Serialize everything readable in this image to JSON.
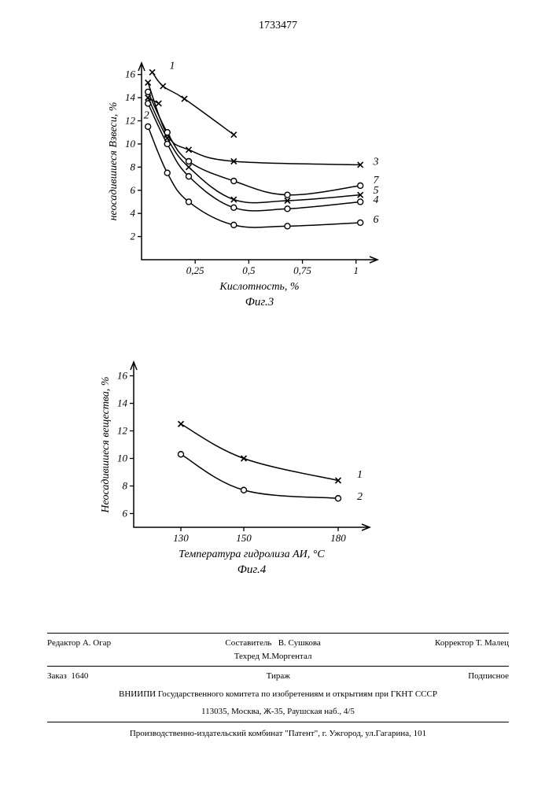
{
  "page_number": "1733477",
  "chart3": {
    "type": "line",
    "title": "Фиг.3",
    "title_fontsize": 15,
    "xlabel": "Кислотность, %",
    "ylabel": "неосадившиеся Взвеси, %",
    "label_fontsize": 14,
    "xlim": [
      0,
      1.1
    ],
    "ylim": [
      0,
      17
    ],
    "xticks": [
      0.25,
      0.5,
      0.75,
      1.0
    ],
    "yticks": [
      2,
      4,
      6,
      8,
      10,
      12,
      14,
      16
    ],
    "axis_color": "#000000",
    "line_color": "#000000",
    "line_width": 1.5,
    "series": [
      {
        "label": "1",
        "marker": "x",
        "x": [
          0.05,
          0.1,
          0.2,
          0.43
        ],
        "y": [
          16.2,
          15.0,
          13.9,
          10.8
        ]
      },
      {
        "label": "2",
        "marker": "x",
        "x": [
          0.03,
          0.08
        ],
        "y": [
          14.0,
          13.5
        ]
      },
      {
        "label": "3",
        "marker": "x",
        "x": [
          0.03,
          0.12,
          0.22,
          0.43,
          1.02
        ],
        "y": [
          15.3,
          10.8,
          9.5,
          8.5,
          8.2
        ]
      },
      {
        "label": "4",
        "marker": "o",
        "x": [
          0.03,
          0.12,
          0.22,
          0.43,
          0.68,
          1.02
        ],
        "y": [
          13.5,
          10.0,
          7.2,
          4.5,
          4.4,
          5.0
        ]
      },
      {
        "label": "5",
        "marker": "x",
        "x": [
          0.03,
          0.12,
          0.22,
          0.43,
          0.68,
          1.02
        ],
        "y": [
          14.0,
          10.5,
          8.0,
          5.2,
          5.1,
          5.6
        ]
      },
      {
        "label": "6",
        "marker": "o",
        "x": [
          0.03,
          0.12,
          0.22,
          0.43,
          0.68,
          1.02
        ],
        "y": [
          11.5,
          7.5,
          5.0,
          3.0,
          2.9,
          3.2
        ]
      },
      {
        "label": "7",
        "marker": "o",
        "x": [
          0.03,
          0.12,
          0.22,
          0.43,
          0.68,
          1.02
        ],
        "y": [
          14.5,
          11.0,
          8.5,
          6.8,
          5.6,
          6.4
        ]
      }
    ],
    "series_label_positions": {
      "1": {
        "x": 0.13,
        "y": 16.5
      },
      "2": {
        "x": 0.01,
        "y": 12.2
      },
      "3": {
        "x": 1.08,
        "y": 8.2
      },
      "7": {
        "x": 1.08,
        "y": 6.6
      },
      "5": {
        "x": 1.08,
        "y": 5.7
      },
      "4": {
        "x": 1.08,
        "y": 4.9
      },
      "6": {
        "x": 1.08,
        "y": 3.2
      }
    }
  },
  "chart4": {
    "type": "line",
    "title": "Фиг.4",
    "title_fontsize": 15,
    "xlabel": "Температура гидролиза АИ, °С",
    "ylabel": "Неосадившиеся вещества, %",
    "label_fontsize": 14,
    "xlim": [
      115,
      190
    ],
    "ylim": [
      5,
      17
    ],
    "xticks": [
      130,
      150,
      180
    ],
    "yticks": [
      6,
      8,
      10,
      12,
      14,
      16
    ],
    "axis_color": "#000000",
    "line_color": "#000000",
    "line_width": 1.5,
    "series": [
      {
        "label": "1",
        "marker": "x",
        "x": [
          130,
          150,
          180
        ],
        "y": [
          12.5,
          10.0,
          8.4
        ]
      },
      {
        "label": "2",
        "marker": "o",
        "x": [
          130,
          150,
          180
        ],
        "y": [
          10.3,
          7.7,
          7.1
        ]
      }
    ],
    "series_label_positions": {
      "1": {
        "x": 186,
        "y": 8.6
      },
      "2": {
        "x": 186,
        "y": 7.0
      }
    }
  },
  "footer": {
    "editor_label": "Редактор",
    "editor": "А. Огар",
    "compiler_label": "Составитель",
    "compiler": "В. Сушкова",
    "techeditor_label": "Техред",
    "techeditor": "М.Моргентал",
    "corrector_label": "Корректор",
    "corrector": "Т. Малец",
    "order_label": "Заказ",
    "order": "1640",
    "tirage": "Тираж",
    "subscription": "Подписное",
    "org": "ВНИИПИ Государственного комитета по изобретениям и открытиям при ГКНТ СССР",
    "address": "113035, Москва, Ж-35, Раушская наб., 4/5",
    "publisher": "Производственно-издательский комбинат \"Патент\", г. Ужгород, ул.Гагарина, 101"
  }
}
